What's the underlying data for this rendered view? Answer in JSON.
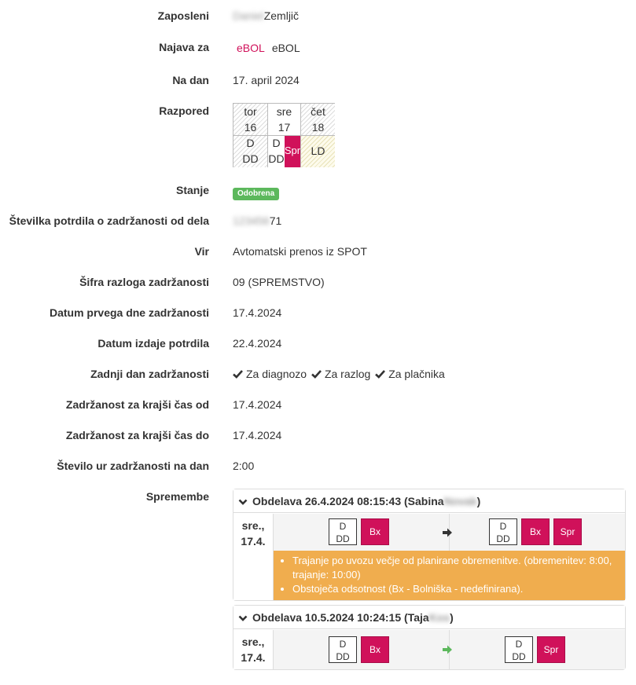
{
  "fields": {
    "zaposleni": {
      "label": "Zaposleni",
      "first_name": "Daniel",
      "last_name": "Zemljič"
    },
    "najava": {
      "label": "Najava za",
      "link": "eBOL",
      "text": "eBOL"
    },
    "na_dan": {
      "label": "Na dan",
      "value": "17. april 2024"
    },
    "razpored": {
      "label": "Razpored"
    },
    "stanje": {
      "label": "Stanje",
      "badge": "Odobrena",
      "badge_color": "#5cb85c"
    },
    "stevilka": {
      "label": "Številka potrdila o zadržanosti od dela",
      "hidden": "123456",
      "visible": "71"
    },
    "vir": {
      "label": "Vir",
      "value": "Avtomatski prenos iz SPOT"
    },
    "sifra": {
      "label": "Šifra razloga zadržanosti",
      "value": "09 (SPREMSTVO)"
    },
    "datum_prvega": {
      "label": "Datum prvega dne zadržanosti",
      "value": "17.4.2024"
    },
    "datum_izdaje": {
      "label": "Datum izdaje potrdila",
      "value": "22.4.2024"
    },
    "zadnji_dan": {
      "label": "Zadnji dan zadržanosti",
      "items": [
        "Za diagnozo",
        "Za razlog",
        "Za plačnika"
      ]
    },
    "krajsi_od": {
      "label": "Zadržanost za krajši čas od",
      "value": "17.4.2024"
    },
    "krajsi_do": {
      "label": "Zadržanost za krajši čas do",
      "value": "17.4.2024"
    },
    "ur_na_dan": {
      "label": "Število ur zadržanosti na dan",
      "value": "2:00"
    },
    "spremembe": {
      "label": "Spremembe"
    }
  },
  "schedule": {
    "days": [
      {
        "name": "tor",
        "num": "16",
        "line1": "D",
        "line2": "DD"
      },
      {
        "name": "sre",
        "num": "17",
        "line1": "D",
        "line2": "DD",
        "tag": "Spr"
      },
      {
        "name": "čet",
        "num": "18",
        "line1": "LD",
        "line2": ""
      }
    ]
  },
  "changes": [
    {
      "title_prefix": "Obdelava 26.4.2024 08:15:43 (Sabina",
      "title_hidden": "Novak",
      "title_suffix": ")",
      "day_name": "sre.,",
      "day_date": "17.4.",
      "before": {
        "line1": "D",
        "line2": "DD",
        "tags": [
          "Bx"
        ]
      },
      "after": {
        "line1": "D",
        "line2": "DD",
        "tags": [
          "Bx",
          "Spr"
        ]
      },
      "warnings": [
        "Trajanje po uvozu večje od planirane obremenitve. (obremenitev: 8:00, trajanje: 10:00)",
        "Obstoječa odsotnost (Bx - Bolniška - nedefinirana)."
      ]
    },
    {
      "title_prefix": "Obdelava 10.5.2024 10:24:15 (Taja",
      "title_hidden": "Kos",
      "title_suffix": ")",
      "day_name": "sre.,",
      "day_date": "17.4.",
      "before": {
        "line1": "D",
        "line2": "DD",
        "tags": [
          "Bx"
        ]
      },
      "after": {
        "line1": "D",
        "line2": "DD",
        "tags": [
          "Spr"
        ]
      }
    }
  ],
  "colors": {
    "accent": "#d0115a",
    "success": "#5cb85c",
    "warning": "#f0ad4e",
    "arrow_dark": "#333333",
    "arrow_green": "#5cb85c"
  }
}
